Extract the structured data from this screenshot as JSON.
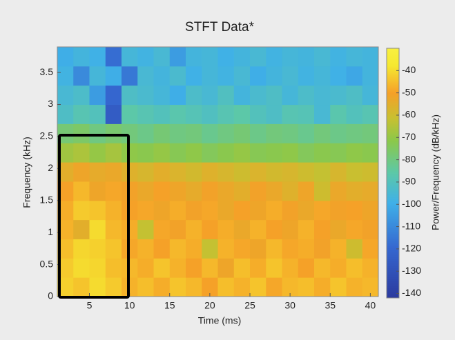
{
  "chart_data": {
    "type": "heatmap",
    "title": "STFT Data*",
    "x_label": "Time (ms)",
    "y_label": "Frequency (kHz)",
    "colorbar_label": "Power/Frequency (dB/kHz)",
    "colormap": "parula",
    "x": [
      2,
      4,
      6,
      8,
      10,
      12,
      14,
      16,
      18,
      20,
      22,
      24,
      26,
      28,
      30,
      32,
      34,
      36,
      38,
      40
    ],
    "y": [
      0.15,
      0.45,
      0.75,
      1.05,
      1.35,
      1.65,
      1.95,
      2.25,
      2.55,
      2.85,
      3.15,
      3.45,
      3.75
    ],
    "z": [
      [
        -42,
        -44,
        -40,
        -43,
        -47,
        -45,
        -48,
        -44,
        -46,
        -50,
        -45,
        -47,
        -44,
        -49,
        -46,
        -45,
        -48,
        -44,
        -47,
        -46
      ],
      [
        -43,
        -40,
        -41,
        -45,
        -46,
        -48,
        -44,
        -47,
        -50,
        -46,
        -52,
        -45,
        -48,
        -44,
        -47,
        -50,
        -46,
        -48,
        -45,
        -47
      ],
      [
        -45,
        -41,
        -42,
        -44,
        -49,
        -47,
        -50,
        -46,
        -48,
        -62,
        -47,
        -49,
        -52,
        -46,
        -49,
        -48,
        -51,
        -47,
        -60,
        -49
      ],
      [
        -47,
        -55,
        -40,
        -46,
        -48,
        -62,
        -49,
        -51,
        -47,
        -50,
        -48,
        -53,
        -47,
        -50,
        -52,
        -47,
        -50,
        -53,
        -49,
        -51
      ],
      [
        -48,
        -43,
        -44,
        -47,
        -50,
        -49,
        -52,
        -48,
        -51,
        -49,
        -53,
        -50,
        -52,
        -48,
        -51,
        -53,
        -49,
        -51,
        -50,
        -52
      ],
      [
        -50,
        -46,
        -52,
        -49,
        -51,
        -53,
        -50,
        -52,
        -54,
        -51,
        -53,
        -55,
        -51,
        -53,
        -56,
        -52,
        -60,
        -53,
        -55,
        -54
      ],
      [
        -55,
        -52,
        -54,
        -53,
        -56,
        -58,
        -55,
        -57,
        -59,
        -56,
        -58,
        -60,
        -57,
        -59,
        -58,
        -60,
        -62,
        -58,
        -61,
        -60
      ],
      [
        -68,
        -66,
        -70,
        -67,
        -71,
        -72,
        -70,
        -73,
        -71,
        -74,
        -72,
        -70,
        -73,
        -72,
        -71,
        -74,
        -72,
        -73,
        -71,
        -72
      ],
      [
        -78,
        -76,
        -80,
        -77,
        -79,
        -81,
        -78,
        -80,
        -79,
        -82,
        -80,
        -78,
        -81,
        -79,
        -80,
        -82,
        -79,
        -81,
        -80,
        -79
      ],
      [
        -92,
        -88,
        -90,
        -125,
        -86,
        -88,
        -90,
        -87,
        -89,
        -91,
        -88,
        -86,
        -90,
        -92,
        -88,
        -89,
        -95,
        -87,
        -90,
        -88
      ],
      [
        -95,
        -93,
        -105,
        -120,
        -92,
        -94,
        -96,
        -100,
        -93,
        -95,
        -91,
        -97,
        -94,
        -92,
        -96,
        -93,
        -95,
        -94,
        -92,
        -96
      ],
      [
        -98,
        -110,
        -96,
        -100,
        -115,
        -95,
        -97,
        -94,
        -99,
        -96,
        -98,
        -95,
        -100,
        -97,
        -95,
        -98,
        -96,
        -99,
        -102,
        -97
      ],
      [
        -100,
        -97,
        -99,
        -118,
        -96,
        -98,
        -95,
        -105,
        -97,
        -96,
        -99,
        -97,
        -95,
        -98,
        -96,
        -97,
        -95,
        -98,
        -96,
        -97
      ]
    ],
    "xlim": [
      1,
      41
    ],
    "ylim": [
      0,
      3.9
    ],
    "xticks": [
      5,
      10,
      15,
      20,
      25,
      30,
      35,
      40
    ],
    "yticks": [
      0,
      0.5,
      1,
      1.5,
      2,
      2.5,
      3,
      3.5
    ],
    "clim": [
      -142,
      -30
    ],
    "cticks": [
      -40,
      -50,
      -60,
      -70,
      -80,
      -90,
      -100,
      -110,
      -120,
      -130,
      -140
    ]
  }
}
